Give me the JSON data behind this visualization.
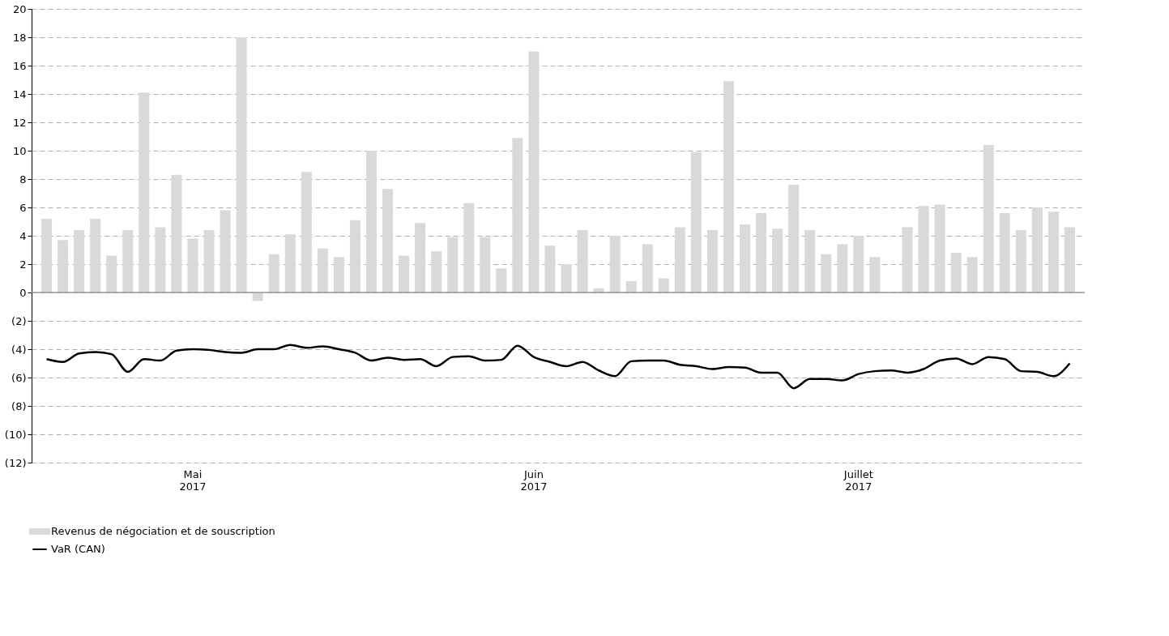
{
  "chart_data": {
    "type": "bar",
    "categories": [
      null,
      null,
      null,
      null,
      null,
      null,
      null,
      null,
      null,
      "Mai 2017",
      null,
      null,
      null,
      null,
      null,
      null,
      null,
      null,
      null,
      null,
      null,
      null,
      null,
      null,
      null,
      null,
      null,
      null,
      null,
      null,
      "Juin 2017",
      null,
      null,
      null,
      null,
      null,
      null,
      null,
      null,
      null,
      null,
      null,
      null,
      null,
      null,
      null,
      null,
      null,
      null,
      null,
      "Juillet 2017",
      null,
      null,
      null,
      null,
      null,
      null,
      null,
      null,
      null,
      null,
      null,
      null,
      null
    ],
    "series": [
      {
        "name": "Revenus de négociation et de souscription",
        "color": "#d9d9d9",
        "values": [
          5.2,
          3.7,
          4.4,
          5.2,
          2.6,
          4.4,
          14.1,
          4.6,
          8.3,
          3.8,
          4.4,
          5.8,
          18.0,
          -0.6,
          2.7,
          4.1,
          8.5,
          3.1,
          2.5,
          5.1,
          10.0,
          7.3,
          2.6,
          4.9,
          2.9,
          3.9,
          6.3,
          3.9,
          1.7,
          10.9,
          17.0,
          3.3,
          2.0,
          4.4,
          0.3,
          4.0,
          0.8,
          3.4,
          1.0,
          4.6,
          9.9,
          4.4,
          14.9,
          4.8,
          5.6,
          4.5,
          7.6,
          4.4,
          2.7,
          3.4,
          4.0,
          2.5,
          null,
          4.6,
          6.1,
          6.2,
          2.8,
          2.5,
          10.4,
          5.6,
          4.4,
          6.0,
          5.7,
          4.6
        ]
      },
      {
        "name": "VaR (CAN)",
        "type": "line",
        "color": "#000000",
        "values": [
          -4.7,
          -4.9,
          -4.3,
          -4.2,
          -4.35,
          -5.6,
          -4.7,
          -4.8,
          -4.1,
          -4.0,
          -4.05,
          -4.2,
          -4.25,
          -4.0,
          -4.0,
          -3.7,
          -3.9,
          -3.8,
          -4.0,
          -4.25,
          -4.8,
          -4.6,
          -4.75,
          -4.7,
          -5.2,
          -4.55,
          -4.5,
          -4.8,
          -4.75,
          -3.75,
          -4.55,
          -4.9,
          -5.2,
          -4.9,
          -5.5,
          -5.9,
          -4.85,
          -4.8,
          -4.8,
          -5.1,
          -5.2,
          -5.4,
          -5.25,
          -5.3,
          -5.65,
          -5.65,
          -6.75,
          -6.1,
          -6.1,
          -6.2,
          -5.75,
          -5.55,
          -5.5,
          -5.65,
          -5.4,
          -4.8,
          -4.65,
          -5.05,
          -4.55,
          -4.7,
          -5.55,
          -5.6,
          -5.9,
          -5.0
        ]
      }
    ],
    "ylim": [
      -12,
      20
    ],
    "yticks": [
      {
        "value": -12,
        "label": "(12)"
      },
      {
        "value": -10,
        "label": "(10)"
      },
      {
        "value": -8,
        "label": "(8)"
      },
      {
        "value": -6,
        "label": "(6)"
      },
      {
        "value": -4,
        "label": "(4)"
      },
      {
        "value": -2,
        "label": "(2)"
      },
      0,
      2,
      4,
      6,
      8,
      10,
      12,
      14,
      16,
      18,
      20
    ],
    "grid": "y",
    "legend": "bottom left",
    "marker": "none"
  }
}
